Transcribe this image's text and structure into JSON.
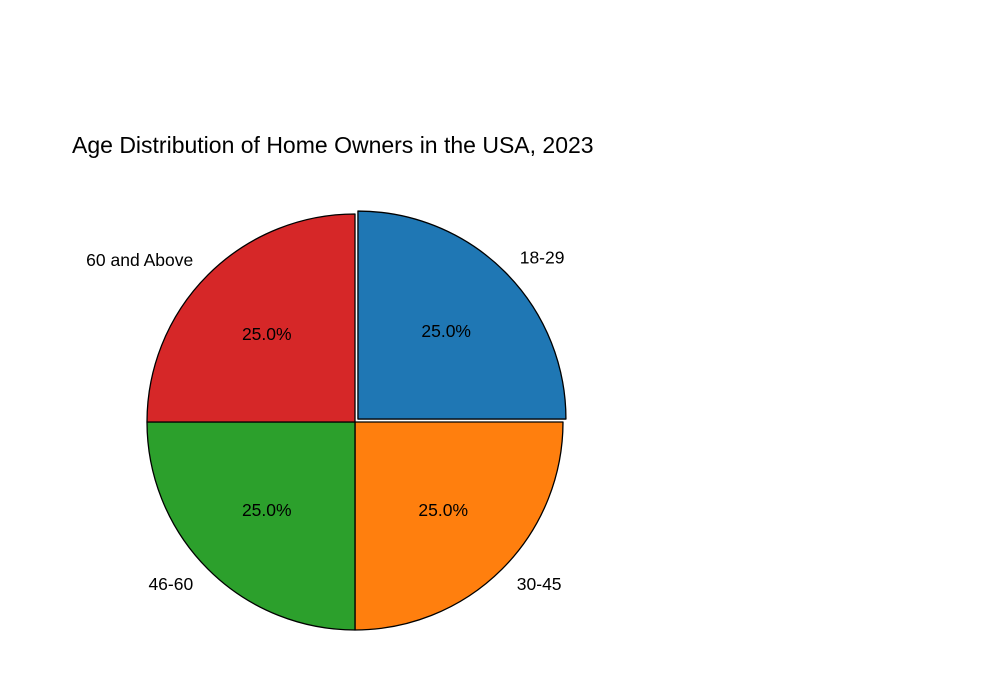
{
  "chart_data": {
    "type": "pie",
    "title": "Age Distribution of Home Owners in the USA, 2023",
    "categories": [
      "18-29",
      "30-45",
      "46-60",
      "60 and Above"
    ],
    "values": [
      25,
      25,
      25,
      25
    ],
    "percent_labels": [
      "25.0%",
      "25.0%",
      "25.0%",
      "25.0%"
    ],
    "colors": [
      "#1f77b4",
      "#ff7f0e",
      "#2ca02c",
      "#d62728"
    ],
    "exploded": [
      true,
      false,
      false,
      false
    ],
    "start_angle_deg": 90,
    "direction": "clockwise",
    "edge_color": "#000000",
    "legend": "none"
  }
}
